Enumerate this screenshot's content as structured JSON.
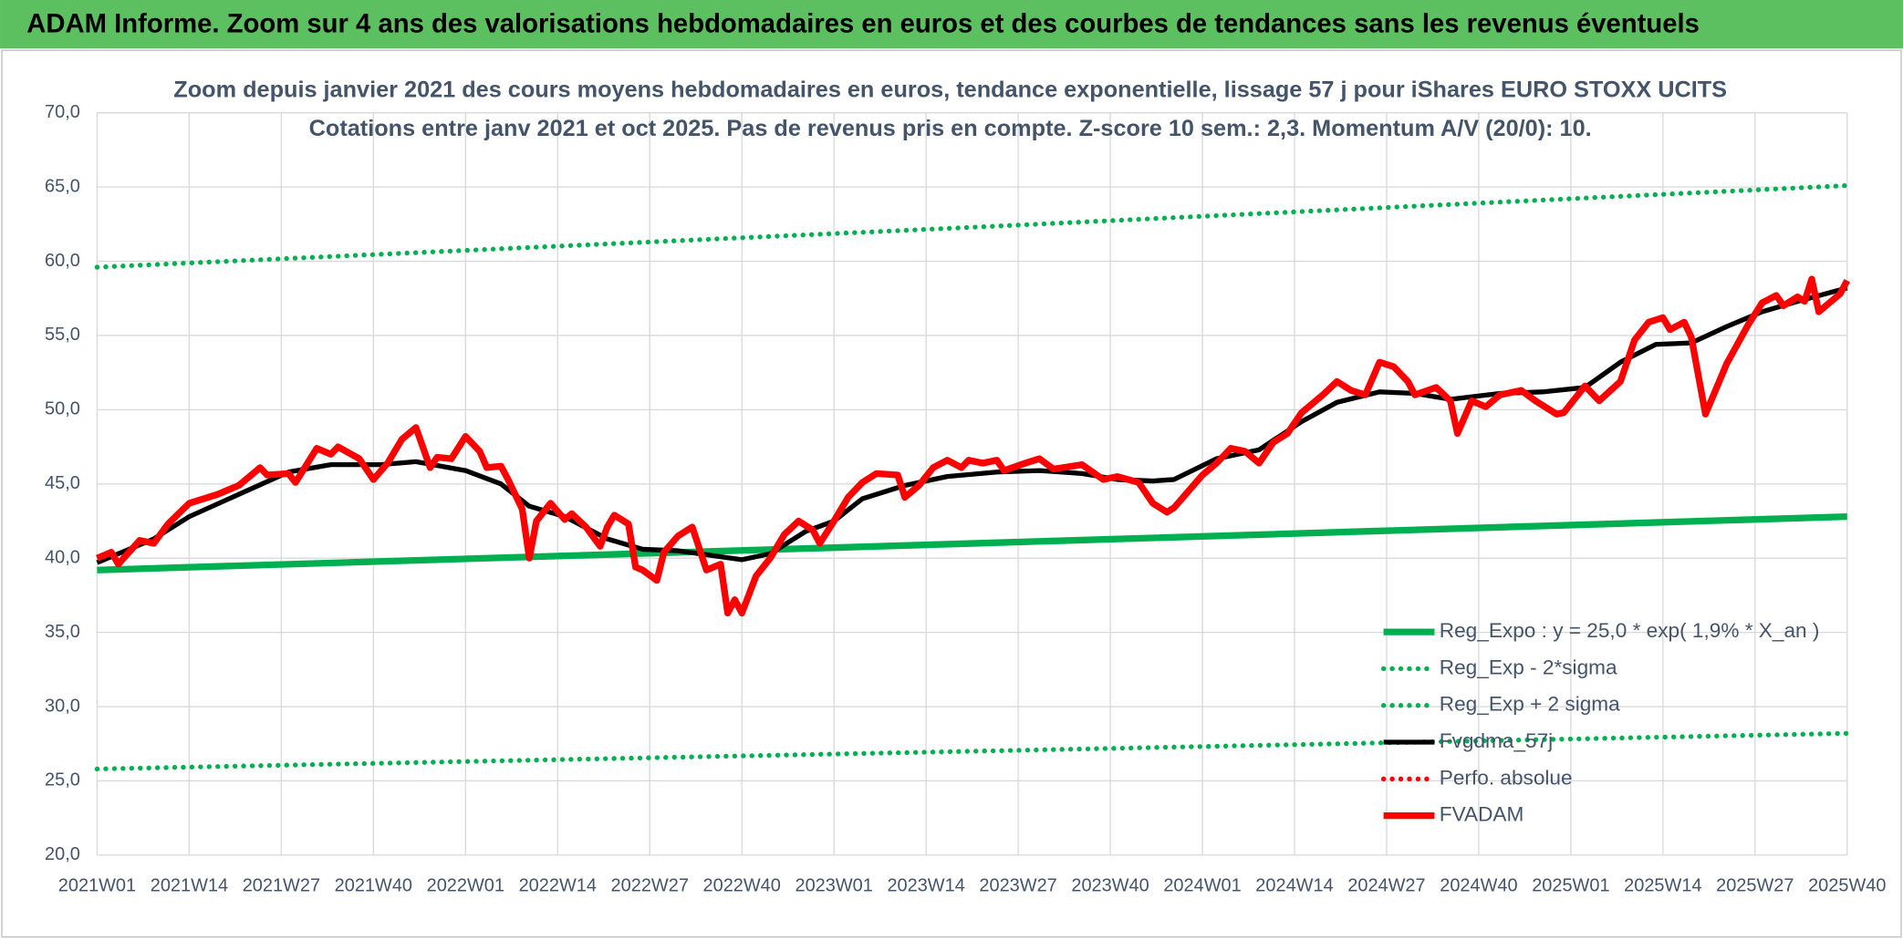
{
  "header": "ADAM Informe. Zoom sur 4 ans des valorisations hebdomadaires en euros et des courbes de tendances sans les revenus éventuels",
  "chart_data": {
    "type": "line",
    "title": "Zoom depuis janvier 2021 des cours moyens hebdomadaires en euros, tendance exponentielle, lissage 57 j pour iShares EURO STOXX UCITS",
    "subtitle": "Cotations entre janv 2021 et oct 2025. Pas de revenus pris en compte. Z-score 10 sem.: 2,3. Momentum A/V (20/0): 10.",
    "xlim": [
      0,
      247
    ],
    "xticks": [
      {
        "value": 0,
        "label": "2021W01"
      },
      {
        "value": 13,
        "label": "2021W14"
      },
      {
        "value": 26,
        "label": "2021W27"
      },
      {
        "value": 39,
        "label": "2021W40"
      },
      {
        "value": 52,
        "label": "2022W01"
      },
      {
        "value": 65,
        "label": "2022W14"
      },
      {
        "value": 78,
        "label": "2022W27"
      },
      {
        "value": 91,
        "label": "2022W40"
      },
      {
        "value": 104,
        "label": "2023W01"
      },
      {
        "value": 117,
        "label": "2023W14"
      },
      {
        "value": 130,
        "label": "2023W27"
      },
      {
        "value": 143,
        "label": "2023W40"
      },
      {
        "value": 156,
        "label": "2024W01"
      },
      {
        "value": 169,
        "label": "2024W14"
      },
      {
        "value": 182,
        "label": "2024W27"
      },
      {
        "value": 195,
        "label": "2024W40"
      },
      {
        "value": 208,
        "label": "2025W01"
      },
      {
        "value": 221,
        "label": "2025W14"
      },
      {
        "value": 234,
        "label": "2025W27"
      },
      {
        "value": 247,
        "label": "2025W40"
      }
    ],
    "ylim": [
      20,
      70
    ],
    "yticks": [
      {
        "value": 20,
        "label": "20,0"
      },
      {
        "value": 25,
        "label": "25,0"
      },
      {
        "value": 30,
        "label": "30,0"
      },
      {
        "value": 35,
        "label": "35,0"
      },
      {
        "value": 40,
        "label": "40,0"
      },
      {
        "value": 45,
        "label": "45,0"
      },
      {
        "value": 50,
        "label": "50,0"
      },
      {
        "value": 55,
        "label": "55,0"
      },
      {
        "value": 60,
        "label": "60,0"
      },
      {
        "value": 65,
        "label": "65,0"
      },
      {
        "value": 70,
        "label": "70,0"
      }
    ],
    "grid": true,
    "legend": "lower right",
    "series": [
      {
        "name": "Reg_Expo : y = 25,0 * exp( 1,9% *  X_an )",
        "color": "#00b050",
        "style": "solid",
        "x": [
          0,
          124,
          247
        ],
        "values": [
          39.2,
          41.0,
          42.8
        ]
      },
      {
        "name": "Reg_Exp - 2*sigma",
        "color": "#00b050",
        "style": "dotted",
        "x": [
          0,
          124,
          247
        ],
        "values": [
          25.8,
          27.0,
          28.2
        ]
      },
      {
        "name": "Reg_Exp + 2 sigma",
        "color": "#00b050",
        "style": "dotted",
        "x": [
          0,
          124,
          247
        ],
        "values": [
          59.6,
          62.3,
          65.1
        ]
      },
      {
        "name": "Fvgdma_57j",
        "color": "#000000",
        "style": "solid",
        "x": [
          0,
          8,
          13,
          20,
          27,
          33,
          40,
          45,
          52,
          57,
          61,
          66,
          72,
          77,
          82,
          88,
          91,
          95,
          100,
          104,
          108,
          114,
          120,
          127,
          133,
          139,
          144,
          149,
          152,
          158,
          164,
          170,
          175,
          181,
          186,
          191,
          198,
          204,
          210,
          215,
          220,
          225,
          230,
          235,
          240,
          247
        ],
        "values": [
          39.7,
          41.3,
          42.8,
          44.3,
          45.8,
          46.3,
          46.3,
          46.5,
          45.9,
          45.0,
          43.5,
          42.8,
          41.3,
          40.6,
          40.5,
          40.1,
          39.9,
          40.3,
          41.8,
          42.5,
          44.0,
          44.9,
          45.5,
          45.8,
          45.9,
          45.7,
          45.3,
          45.2,
          45.3,
          46.7,
          47.3,
          49.2,
          50.5,
          51.2,
          51.1,
          50.7,
          51.1,
          51.2,
          51.5,
          53.2,
          54.4,
          54.5,
          55.6,
          56.6,
          57.3,
          58.2
        ]
      },
      {
        "name": "Perfo. absolue",
        "color": "#ff0000",
        "style": "dotted",
        "x": [],
        "values": []
      },
      {
        "name": "FVADAM",
        "color": "#ff0000",
        "style": "solid",
        "x": [
          0,
          2,
          3,
          6,
          8,
          10,
          13,
          17,
          20,
          23,
          24,
          27,
          28,
          31,
          33,
          34,
          37,
          39,
          41,
          43,
          45,
          47,
          48,
          50,
          52,
          54,
          55,
          57,
          58,
          60,
          61,
          62,
          64,
          66,
          67,
          69,
          71,
          72,
          73,
          75,
          76,
          77,
          79,
          80,
          82,
          84,
          86,
          88,
          89,
          90,
          91,
          93,
          95,
          97,
          99,
          101,
          102,
          104,
          106,
          108,
          110,
          113,
          114,
          116,
          118,
          120,
          122,
          123,
          125,
          127,
          128,
          131,
          133,
          135,
          139,
          142,
          144,
          147,
          149,
          151,
          152,
          154,
          156,
          158,
          160,
          162,
          164,
          166,
          168,
          170,
          173,
          175,
          177,
          179,
          181,
          183,
          185,
          186,
          189,
          191,
          192,
          194,
          196,
          198,
          201,
          203,
          206,
          207,
          210,
          212,
          215,
          217,
          219,
          221,
          222,
          224,
          225,
          227,
          230,
          233,
          235,
          237,
          238,
          240,
          241,
          242,
          243,
          245,
          246,
          247
        ],
        "values": [
          40.0,
          40.4,
          39.6,
          41.2,
          41.0,
          42.3,
          43.7,
          44.3,
          44.9,
          46.1,
          45.6,
          45.7,
          45.1,
          47.4,
          47.0,
          47.5,
          46.7,
          45.3,
          46.4,
          48.0,
          48.8,
          46.1,
          46.8,
          46.7,
          48.2,
          47.2,
          46.1,
          46.2,
          45.3,
          43.3,
          40.0,
          42.5,
          43.7,
          42.6,
          43.0,
          42.1,
          40.8,
          42.1,
          42.9,
          42.3,
          39.4,
          39.2,
          38.5,
          40.4,
          41.5,
          42.1,
          39.2,
          39.6,
          36.3,
          37.2,
          36.3,
          38.8,
          40.0,
          41.6,
          42.5,
          41.9,
          41.0,
          42.5,
          44.1,
          45.1,
          45.7,
          45.6,
          44.1,
          44.9,
          46.1,
          46.6,
          46.1,
          46.6,
          46.4,
          46.6,
          45.9,
          46.4,
          46.7,
          46.0,
          46.3,
          45.3,
          45.5,
          45.1,
          43.7,
          43.1,
          43.4,
          44.5,
          45.6,
          46.4,
          47.4,
          47.2,
          46.4,
          47.8,
          48.4,
          49.8,
          51.0,
          51.9,
          51.3,
          51.0,
          53.2,
          52.9,
          51.9,
          51.0,
          51.5,
          50.6,
          48.4,
          50.6,
          50.2,
          51.0,
          51.3,
          50.6,
          49.7,
          49.8,
          51.6,
          50.6,
          51.9,
          54.7,
          55.9,
          56.2,
          55.4,
          55.9,
          54.9,
          49.7,
          53.1,
          55.7,
          57.2,
          57.7,
          57.0,
          57.6,
          57.3,
          58.8,
          56.6,
          57.4,
          57.8,
          58.7
        ]
      }
    ]
  }
}
